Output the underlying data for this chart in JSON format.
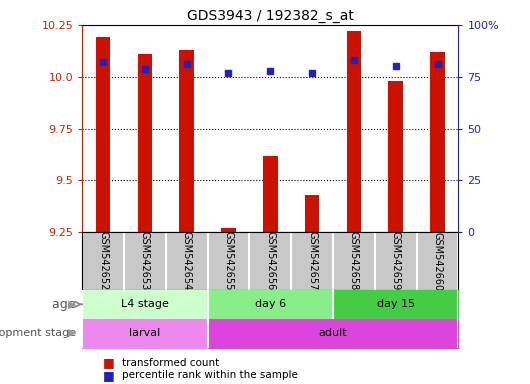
{
  "title": "GDS3943 / 192382_s_at",
  "samples": [
    "GSM542652",
    "GSM542653",
    "GSM542654",
    "GSM542655",
    "GSM542656",
    "GSM542657",
    "GSM542658",
    "GSM542659",
    "GSM542660"
  ],
  "red_values": [
    10.19,
    10.11,
    10.13,
    9.27,
    9.62,
    9.43,
    10.22,
    9.98,
    10.12
  ],
  "blue_values": [
    82,
    79,
    81,
    77,
    78,
    77,
    83,
    80,
    81
  ],
  "ylim_left": [
    9.25,
    10.25
  ],
  "ylim_right": [
    0,
    100
  ],
  "yticks_left": [
    9.25,
    9.5,
    9.75,
    10.0,
    10.25
  ],
  "yticks_right": [
    0,
    25,
    50,
    75,
    100
  ],
  "age_groups": [
    {
      "label": "L4 stage",
      "start": 0,
      "end": 3,
      "color": "#ccffcc"
    },
    {
      "label": "day 6",
      "start": 3,
      "end": 6,
      "color": "#88ee88"
    },
    {
      "label": "day 15",
      "start": 6,
      "end": 9,
      "color": "#44cc44"
    }
  ],
  "dev_groups": [
    {
      "label": "larval",
      "start": 0,
      "end": 3,
      "color": "#ee88ee"
    },
    {
      "label": "adult",
      "start": 3,
      "end": 9,
      "color": "#dd44dd"
    }
  ],
  "age_label": "age",
  "dev_label": "development stage",
  "legend_red": "transformed count",
  "legend_blue": "percentile rank within the sample",
  "bar_color": "#cc1100",
  "dot_color": "#2222bb",
  "background_color": "#ffffff",
  "sample_bg_color": "#c8c8c8",
  "axis_color_left": "#cc2200",
  "axis_color_right": "#2222bb",
  "bar_width": 0.35
}
